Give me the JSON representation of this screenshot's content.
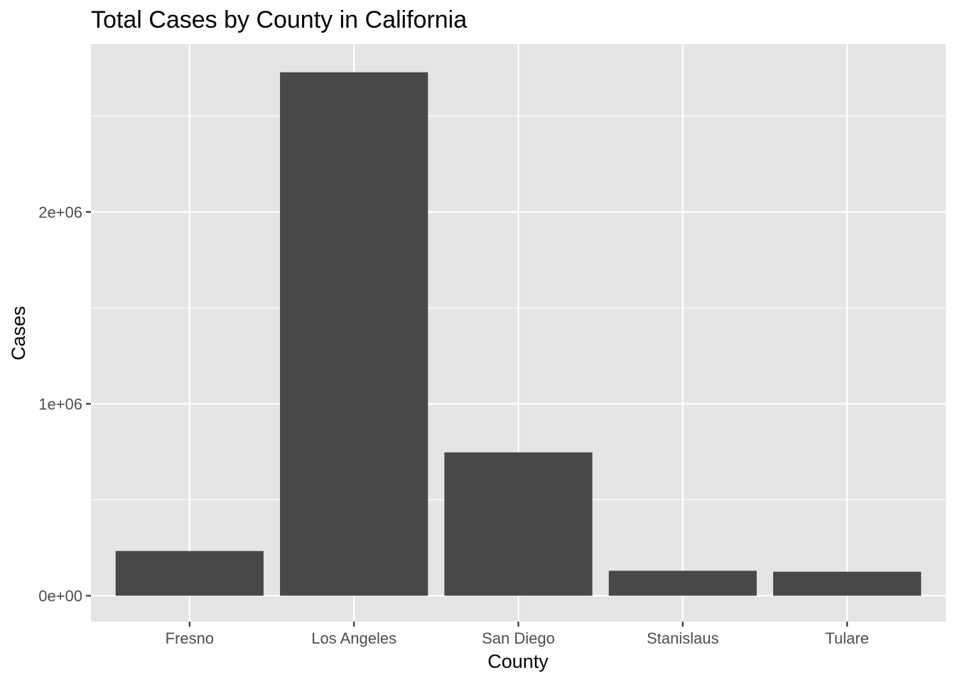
{
  "chart_data": {
    "type": "bar",
    "title": "Total Cases by County in California",
    "xlabel": "County",
    "ylabel": "Cases",
    "categories": [
      "Fresno",
      "Los Angeles",
      "San Diego",
      "Stanislaus",
      "Tulare"
    ],
    "values": [
      233000,
      2728000,
      747000,
      130000,
      125000
    ],
    "ylim": [
      -135000,
      2875000
    ],
    "yticks": [
      {
        "value": 0,
        "label": "0e+00"
      },
      {
        "value": 1000000,
        "label": "1e+06"
      },
      {
        "value": 2000000,
        "label": "2e+06"
      }
    ],
    "yminor": [
      500000,
      1500000,
      2500000
    ],
    "grid": true,
    "legend": "none",
    "colors": {
      "bar": "#484848",
      "panel": "#e5e5e5",
      "grid": "#ffffff",
      "tick_text": "#4d4d4d",
      "text": "#000000"
    }
  }
}
